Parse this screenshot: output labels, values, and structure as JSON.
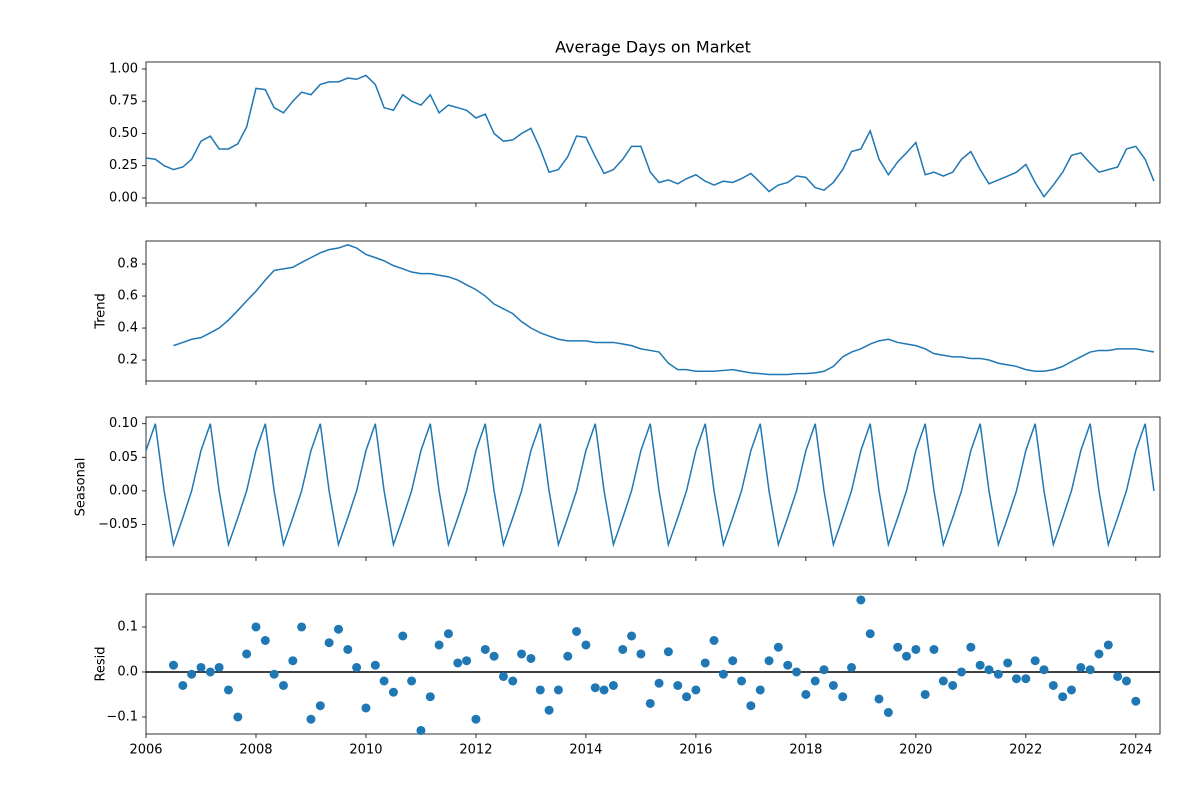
{
  "chart_data": {
    "type": "decomposition",
    "color": "#1f77b4",
    "x": [
      2006,
      2006.17,
      2006.33,
      2006.5,
      2006.67,
      2006.83,
      2007,
      2007.17,
      2007.33,
      2007.5,
      2007.67,
      2007.83,
      2008,
      2008.17,
      2008.33,
      2008.5,
      2008.67,
      2008.83,
      2009,
      2009.17,
      2009.33,
      2009.5,
      2009.67,
      2009.83,
      2010,
      2010.17,
      2010.33,
      2010.5,
      2010.67,
      2010.83,
      2011,
      2011.17,
      2011.33,
      2011.5,
      2011.67,
      2011.83,
      2012,
      2012.17,
      2012.33,
      2012.5,
      2012.67,
      2012.83,
      2013,
      2013.17,
      2013.33,
      2013.5,
      2013.67,
      2013.83,
      2014,
      2014.17,
      2014.33,
      2014.5,
      2014.67,
      2014.83,
      2015,
      2015.17,
      2015.33,
      2015.5,
      2015.67,
      2015.83,
      2016,
      2016.17,
      2016.33,
      2016.5,
      2016.67,
      2016.83,
      2017,
      2017.17,
      2017.33,
      2017.5,
      2017.67,
      2017.83,
      2018,
      2018.17,
      2018.33,
      2018.5,
      2018.67,
      2018.83,
      2019,
      2019.17,
      2019.33,
      2019.5,
      2019.67,
      2019.83,
      2020,
      2020.17,
      2020.33,
      2020.5,
      2020.67,
      2020.83,
      2021,
      2021.17,
      2021.33,
      2021.5,
      2021.67,
      2021.83,
      2022,
      2022.17,
      2022.33,
      2022.5,
      2022.67,
      2022.83,
      2023,
      2023.17,
      2023.33,
      2023.5,
      2023.67,
      2023.83,
      2024,
      2024.17,
      2024.33
    ],
    "xlim": [
      2006,
      2024.44
    ],
    "xticks": [
      2006,
      2008,
      2010,
      2012,
      2014,
      2016,
      2018,
      2020,
      2022,
      2024
    ],
    "panels": [
      {
        "type": "line",
        "title": "Average Days on Market",
        "values": [
          0.31,
          0.3,
          0.25,
          0.22,
          0.24,
          0.3,
          0.44,
          0.48,
          0.38,
          0.38,
          0.42,
          0.55,
          0.85,
          0.84,
          0.7,
          0.66,
          0.75,
          0.82,
          0.8,
          0.88,
          0.9,
          0.9,
          0.93,
          0.92,
          0.95,
          0.88,
          0.7,
          0.68,
          0.8,
          0.75,
          0.72,
          0.8,
          0.66,
          0.72,
          0.7,
          0.68,
          0.62,
          0.65,
          0.5,
          0.44,
          0.45,
          0.5,
          0.54,
          0.38,
          0.2,
          0.22,
          0.32,
          0.48,
          0.47,
          0.32,
          0.19,
          0.22,
          0.3,
          0.4,
          0.4,
          0.2,
          0.12,
          0.14,
          0.11,
          0.15,
          0.18,
          0.13,
          0.1,
          0.13,
          0.12,
          0.15,
          0.19,
          0.12,
          0.05,
          0.1,
          0.12,
          0.17,
          0.16,
          0.08,
          0.06,
          0.12,
          0.22,
          0.36,
          0.38,
          0.52,
          0.3,
          0.18,
          0.28,
          0.35,
          0.43,
          0.18,
          0.2,
          0.17,
          0.2,
          0.3,
          0.36,
          0.22,
          0.11,
          0.14,
          0.17,
          0.2,
          0.26,
          0.12,
          0.01,
          0.1,
          0.2,
          0.33,
          0.35,
          0.27,
          0.2,
          0.22,
          0.24,
          0.38,
          0.4,
          0.3,
          0.13
        ],
        "ylim": [
          -0.039,
          1.054
        ],
        "yticks": [
          {
            "value": 0,
            "label": "0.00"
          },
          {
            "value": 0.25,
            "label": "0.25"
          },
          {
            "value": 0.5,
            "label": "0.50"
          },
          {
            "value": 0.75,
            "label": "0.75"
          },
          {
            "value": 1,
            "label": "1.00"
          }
        ]
      },
      {
        "type": "line",
        "ylabel": "Trend",
        "values": [
          null,
          null,
          null,
          0.29,
          0.31,
          0.33,
          0.34,
          0.37,
          0.4,
          0.45,
          0.51,
          0.57,
          0.63,
          0.7,
          0.76,
          0.77,
          0.78,
          0.81,
          0.84,
          0.87,
          0.89,
          0.9,
          0.92,
          0.9,
          0.86,
          0.84,
          0.82,
          0.79,
          0.77,
          0.75,
          0.74,
          0.74,
          0.73,
          0.72,
          0.7,
          0.67,
          0.64,
          0.6,
          0.55,
          0.52,
          0.49,
          0.44,
          0.4,
          0.37,
          0.35,
          0.33,
          0.32,
          0.32,
          0.32,
          0.31,
          0.31,
          0.31,
          0.3,
          0.29,
          0.27,
          0.26,
          0.25,
          0.18,
          0.14,
          0.14,
          0.13,
          0.13,
          0.13,
          0.135,
          0.14,
          0.13,
          0.12,
          0.115,
          0.11,
          0.11,
          0.11,
          0.115,
          0.115,
          0.12,
          0.13,
          0.16,
          0.22,
          0.25,
          0.27,
          0.3,
          0.32,
          0.33,
          0.31,
          0.3,
          0.29,
          0.27,
          0.24,
          0.23,
          0.22,
          0.22,
          0.21,
          0.21,
          0.2,
          0.18,
          0.17,
          0.16,
          0.14,
          0.13,
          0.13,
          0.14,
          0.16,
          0.19,
          0.22,
          0.25,
          0.26,
          0.26,
          0.27,
          0.27,
          0.27,
          0.26,
          0.25
        ],
        "ylim": [
          0.069,
          0.944
        ],
        "yticks": [
          0.2,
          0.4,
          0.6,
          0.8
        ]
      },
      {
        "type": "line",
        "ylabel": "Seasonal",
        "values": [
          0.06,
          0.1,
          0.0,
          -0.08,
          -0.04,
          0.0,
          0.06,
          0.1,
          0.0,
          -0.08,
          -0.04,
          0.0,
          0.06,
          0.1,
          0.0,
          -0.08,
          -0.04,
          0.0,
          0.06,
          0.1,
          0.0,
          -0.08,
          -0.04,
          0.0,
          0.06,
          0.1,
          0.0,
          -0.08,
          -0.04,
          0.0,
          0.06,
          0.1,
          0.0,
          -0.08,
          -0.04,
          0.0,
          0.06,
          0.1,
          0.0,
          -0.08,
          -0.04,
          0.0,
          0.06,
          0.1,
          0.0,
          -0.08,
          -0.04,
          0.0,
          0.06,
          0.1,
          0.0,
          -0.08,
          -0.04,
          0.0,
          0.06,
          0.1,
          0.0,
          -0.08,
          -0.04,
          0.0,
          0.06,
          0.1,
          0.0,
          -0.08,
          -0.04,
          0.0,
          0.06,
          0.1,
          0.0,
          -0.08,
          -0.04,
          0.0,
          0.06,
          0.1,
          0.0,
          -0.08,
          -0.04,
          0.0,
          0.06,
          0.1,
          0.0,
          -0.08,
          -0.04,
          0.0,
          0.06,
          0.1,
          0.0,
          -0.08,
          -0.04,
          0.0,
          0.06,
          0.1,
          0.0,
          -0.08,
          -0.04,
          0.0,
          0.06,
          0.1,
          0.0,
          -0.08,
          -0.04,
          0.0,
          0.06,
          0.1,
          0.0,
          -0.08,
          -0.04,
          0.0,
          0.06,
          0.1,
          0.0
        ],
        "ylim": [
          -0.0985,
          0.11
        ],
        "yticks": [
          {
            "value": -0.05,
            "label": "−0.05"
          },
          {
            "value": 0,
            "label": "0.00"
          },
          {
            "value": 0.05,
            "label": "0.05"
          },
          {
            "value": 0.1,
            "label": "0.10"
          }
        ]
      },
      {
        "type": "scatter",
        "ylabel": "Resid",
        "hline": 0,
        "values": [
          null,
          null,
          null,
          0.015,
          -0.03,
          -0.005,
          0.01,
          0.0,
          0.01,
          -0.04,
          -0.1,
          0.04,
          0.1,
          0.07,
          -0.005,
          -0.03,
          0.025,
          0.1,
          -0.105,
          -0.075,
          0.065,
          0.095,
          0.05,
          0.01,
          -0.08,
          0.015,
          -0.02,
          -0.045,
          0.08,
          -0.02,
          -0.13,
          -0.055,
          0.06,
          0.085,
          0.02,
          0.025,
          -0.105,
          0.05,
          0.035,
          -0.01,
          -0.02,
          0.04,
          0.03,
          -0.04,
          -0.085,
          -0.04,
          0.035,
          0.09,
          0.06,
          -0.035,
          -0.04,
          -0.03,
          0.05,
          0.08,
          0.04,
          -0.07,
          -0.025,
          0.045,
          -0.03,
          -0.055,
          -0.04,
          0.02,
          0.07,
          -0.005,
          0.025,
          -0.02,
          -0.075,
          -0.04,
          0.025,
          0.055,
          0.015,
          0.0,
          -0.05,
          -0.02,
          0.005,
          -0.03,
          -0.055,
          0.01,
          0.16,
          0.085,
          -0.06,
          -0.09,
          0.055,
          0.035,
          0.05,
          -0.05,
          0.05,
          -0.02,
          -0.03,
          0.0,
          0.055,
          0.015,
          0.005,
          -0.005,
          0.02,
          -0.015,
          -0.015,
          0.025,
          0.005,
          -0.03,
          -0.055,
          -0.04,
          0.01,
          0.005,
          0.04,
          0.06,
          -0.01,
          -0.02,
          -0.065,
          null,
          null
        ],
        "ylim": [
          -0.1378,
          0.1733
        ],
        "yticks": [
          {
            "value": -0.1,
            "label": "−0.1"
          },
          {
            "value": 0,
            "label": "0.0"
          },
          0.1
        ]
      }
    ]
  }
}
